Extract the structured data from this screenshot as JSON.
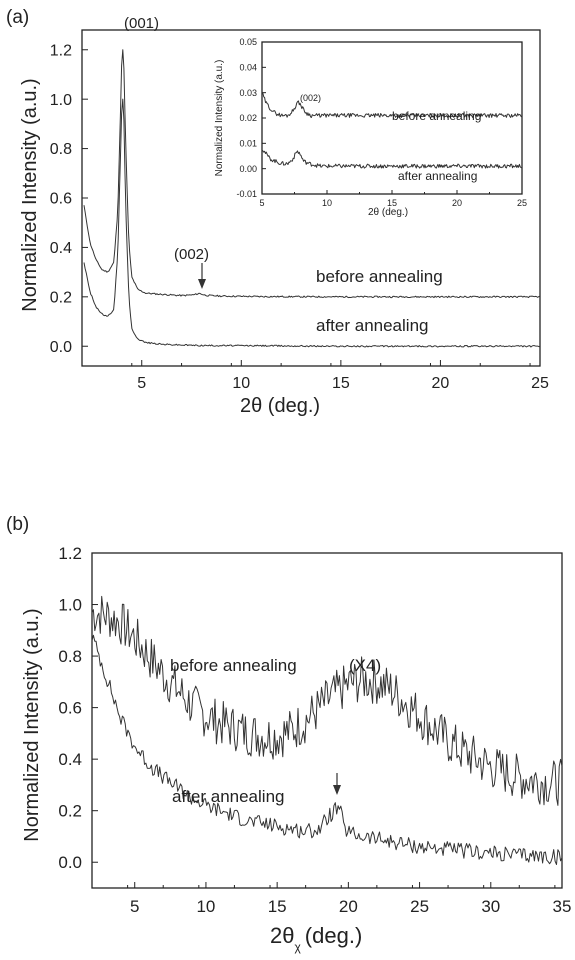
{
  "chart_data": [
    {
      "panel_label": "(a)",
      "type": "line",
      "xlabel": "2θ (deg.)",
      "ylabel": "Normalized Intensity (a.u.)",
      "xlim": [
        2,
        25
      ],
      "ylim": [
        -0.08,
        1.28
      ],
      "xticks": [
        5,
        10,
        15,
        20,
        25
      ],
      "yticks": [
        0.0,
        0.2,
        0.4,
        0.6,
        0.8,
        1.0,
        1.2
      ],
      "series": [
        {
          "name": "before annealing",
          "label": "before annealing",
          "x": [
            2.1,
            2.4,
            2.7,
            3.0,
            3.3,
            3.6,
            3.8,
            3.9,
            4.0,
            4.05,
            4.1,
            4.2,
            4.35,
            4.5,
            4.8,
            5.2,
            6,
            7,
            7.6,
            7.9,
            8.2,
            9,
            11,
            15,
            20,
            25
          ],
          "y": [
            0.57,
            0.42,
            0.35,
            0.31,
            0.3,
            0.34,
            0.55,
            0.85,
            1.17,
            1.2,
            1.14,
            0.8,
            0.42,
            0.28,
            0.23,
            0.215,
            0.21,
            0.205,
            0.208,
            0.214,
            0.206,
            0.203,
            0.201,
            0.2,
            0.2,
            0.2
          ]
        },
        {
          "name": "after annealing",
          "label": "after annealing",
          "x": [
            2.1,
            2.4,
            2.7,
            3.0,
            3.3,
            3.6,
            3.8,
            3.9,
            4.0,
            4.05,
            4.1,
            4.2,
            4.35,
            4.5,
            4.8,
            5.2,
            6,
            7,
            8,
            11,
            15,
            20,
            25
          ],
          "y": [
            0.34,
            0.22,
            0.16,
            0.13,
            0.12,
            0.15,
            0.38,
            0.68,
            0.97,
            1.0,
            0.93,
            0.55,
            0.2,
            0.07,
            0.03,
            0.015,
            0.008,
            0.005,
            0.003,
            0.002,
            0.0,
            0.0,
            0.0
          ]
        }
      ],
      "annotations": [
        {
          "text": "(001)",
          "x": 4.1,
          "y": 1.2
        },
        {
          "text": "(002)",
          "x": 7.8,
          "y": 0.21,
          "arrow": true
        }
      ],
      "inset": {
        "type": "line",
        "xlabel": "2θ (deg.)",
        "ylabel": "Normalized Intensity (a.u.)",
        "xlim": [
          5,
          25
        ],
        "ylim": [
          -0.01,
          0.05
        ],
        "xticks": [
          5,
          10,
          15,
          20,
          25
        ],
        "yticks": [
          -0.01,
          0.0,
          0.01,
          0.02,
          0.03,
          0.04,
          0.05
        ],
        "series": [
          {
            "name": "before annealing",
            "label": "before annealing",
            "x": [
              5.0,
              5.3,
              5.6,
              6.0,
              6.5,
              7.0,
              7.4,
              7.7,
              7.9,
              8.1,
              8.4,
              8.8,
              9.5,
              11,
              13,
              15,
              17,
              19,
              21,
              23,
              25
            ],
            "y": [
              0.03,
              0.026,
              0.024,
              0.022,
              0.021,
              0.021,
              0.023,
              0.026,
              0.026,
              0.024,
              0.022,
              0.021,
              0.021,
              0.021,
              0.021,
              0.021,
              0.021,
              0.021,
              0.021,
              0.021,
              0.021
            ]
          },
          {
            "name": "after annealing",
            "label": "after annealing",
            "x": [
              5.0,
              5.3,
              5.6,
              6.0,
              6.5,
              7.0,
              7.4,
              7.7,
              7.9,
              8.2,
              8.6,
              9.5,
              11,
              13,
              15,
              17,
              19,
              21,
              23,
              25
            ],
            "y": [
              0.008,
              0.006,
              0.004,
              0.003,
              0.002,
              0.002,
              0.004,
              0.007,
              0.006,
              0.003,
              0.002,
              0.001,
              0.001,
              0.001,
              0.001,
              0.001,
              0.001,
              0.001,
              0.001,
              0.001
            ]
          }
        ],
        "annotations": [
          {
            "text": "(002)",
            "x": 7.8,
            "y": 0.028
          }
        ]
      }
    },
    {
      "panel_label": "(b)",
      "type": "line",
      "xlabel": "2θ",
      "xlabel_sub": "χ",
      "xlabel_unit": "(deg.)",
      "ylabel": "Normalized Intensity (a.u.)",
      "xlim": [
        2,
        35
      ],
      "ylim": [
        -0.1,
        1.2
      ],
      "xticks": [
        5,
        10,
        15,
        20,
        25,
        30,
        35
      ],
      "yticks": [
        0.0,
        0.2,
        0.4,
        0.6,
        0.8,
        1.0,
        1.2
      ],
      "series": [
        {
          "name": "before annealing",
          "label": "before annealing",
          "x": [
            2,
            3,
            4,
            5,
            6,
            7,
            8,
            9,
            10,
            11,
            12,
            13,
            14,
            15,
            16,
            17,
            18,
            19,
            20,
            21,
            22,
            23,
            24,
            25,
            26,
            27,
            28,
            29,
            30,
            31,
            32,
            33,
            34,
            35
          ],
          "y": [
            0.97,
            0.96,
            0.93,
            0.87,
            0.8,
            0.73,
            0.67,
            0.61,
            0.57,
            0.54,
            0.52,
            0.5,
            0.49,
            0.49,
            0.51,
            0.55,
            0.6,
            0.65,
            0.69,
            0.71,
            0.7,
            0.67,
            0.62,
            0.57,
            0.52,
            0.47,
            0.43,
            0.4,
            0.37,
            0.35,
            0.33,
            0.32,
            0.31,
            0.31
          ]
        },
        {
          "name": "after annealing",
          "label": "after annealing",
          "x": [
            2,
            3,
            4,
            5,
            6,
            7,
            8,
            9,
            10,
            11,
            12,
            13,
            14,
            15,
            16,
            17,
            18,
            18.5,
            19,
            19.4,
            19.7,
            20.2,
            21,
            22,
            23,
            24,
            25,
            26,
            27,
            28,
            29,
            30,
            31,
            32,
            33,
            34,
            35
          ],
          "y": [
            0.88,
            0.72,
            0.56,
            0.45,
            0.38,
            0.33,
            0.29,
            0.25,
            0.22,
            0.2,
            0.18,
            0.16,
            0.15,
            0.14,
            0.13,
            0.12,
            0.13,
            0.17,
            0.2,
            0.21,
            0.13,
            0.11,
            0.1,
            0.09,
            0.08,
            0.07,
            0.06,
            0.055,
            0.05,
            0.045,
            0.04,
            0.035,
            0.03,
            0.028,
            0.025,
            0.022,
            0.02
          ]
        }
      ],
      "annotations": [
        {
          "text": "(X4)",
          "x": 22,
          "y": 0.86
        },
        {
          "text": "",
          "x": 19.3,
          "y": 0.24,
          "arrow": true
        }
      ]
    }
  ]
}
